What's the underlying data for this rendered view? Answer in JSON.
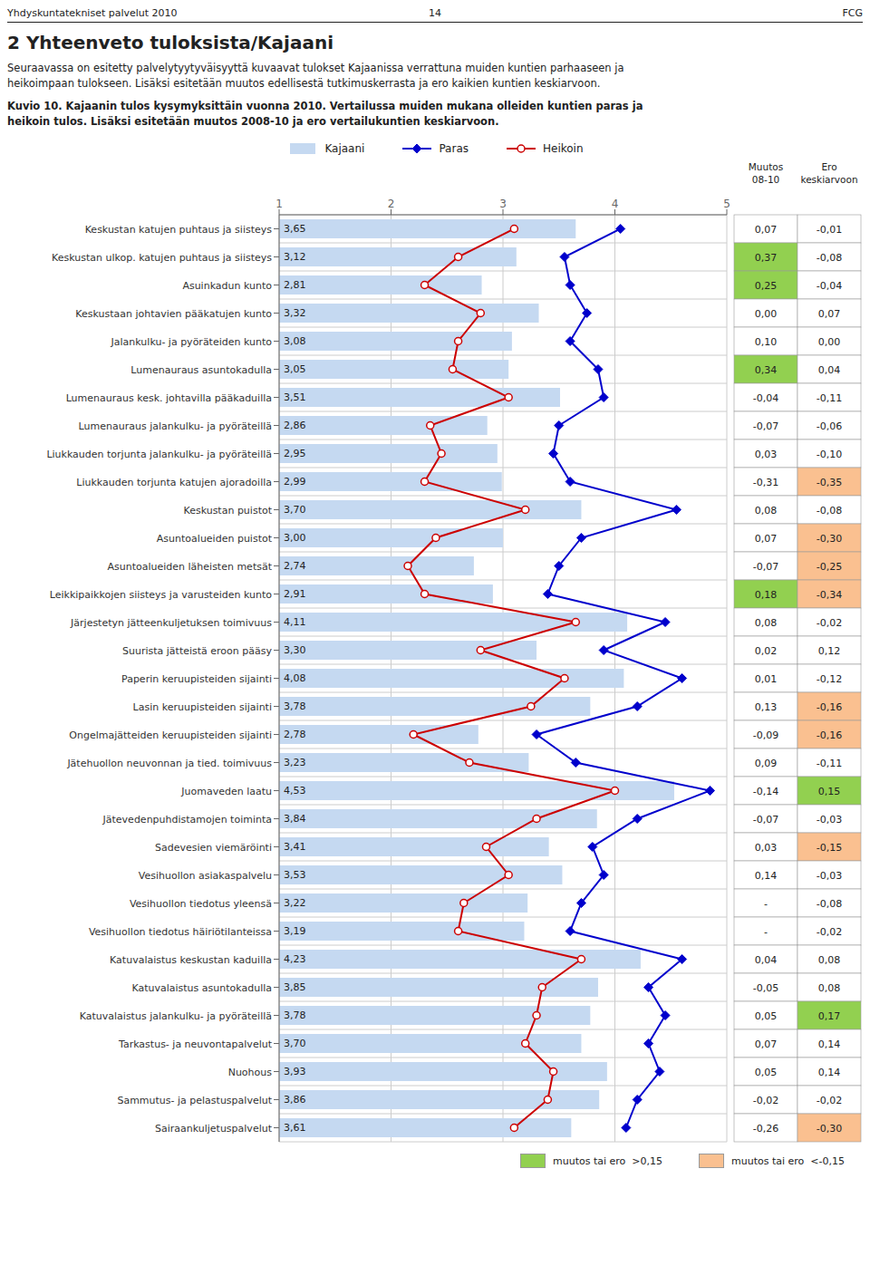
{
  "chart_data": {
    "type": "bar",
    "orientation": "horizontal",
    "header": [
      "Yhdyskuntatekniset palvelut 2010",
      "14",
      "FCG"
    ],
    "title": "2 Yhteenveto tuloksista/Kajaani",
    "intro": [
      "Seuraavassa on esitetty palvelytyytyväisyyttä kuvaavat tulokset Kajaanissa verrattuna muiden kuntien parhaaseen ja",
      "heikoimpaan tulokseen. Lisäksi esitetään muutos edellisestä tutkimuskerrasta ja ero kaikien kuntien keskiarvoon."
    ],
    "caption": [
      "Kuvio 10. Kajaanin tulos kysymyksittäin vuonna 2010. Vertailussa muiden mukana olleiden kuntien paras ja",
      "heikoin tulos. Lisäksi esitetään muutos 2008-10 ja ero vertailukuntien keskiarvoon."
    ],
    "categories": [
      "Keskustan katujen puhtaus ja siisteys",
      "Keskustan ulkop. katujen puhtaus ja siisteys",
      "Asuinkadun kunto",
      "Keskustaan johtavien pääkatujen kunto",
      "Jalankulku- ja pyöräteiden kunto",
      "Lumenauraus asuntokadulla",
      "Lumenauraus kesk. johtavilla pääkaduilla",
      "Lumenauraus jalankulku- ja pyöräteillä",
      "Liukkauden torjunta jalankulku- ja pyöräteillä",
      "Liukkauden torjunta katujen ajoradoilla",
      "Keskustan puistot",
      "Asuntoalueiden puistot",
      "Asuntoalueiden läheisten metsät",
      "Leikkipaikkojen siisteys ja varusteiden kunto",
      "Järjestetyn jätteenkuljetuksen toimivuus",
      "Suurista jätteistä eroon pääsy",
      "Paperin keruupisteiden sijainti",
      "Lasin keruupisteiden sijainti",
      "Ongelmajätteiden keruupisteiden sijainti",
      "Jätehuollon neuvonnan ja tied. toimivuus",
      "Juomaveden laatu",
      "Jätevedenpuhdistamojen toiminta",
      "Sadevesien viemäröinti",
      "Vesihuollon asiakaspalvelu",
      "Vesihuollon tiedotus yleensä",
      "Vesihuollon tiedotus häiriötilanteissa",
      "Katuvalaistus keskustan kaduilla",
      "Katuvalaistus asuntokadulla",
      "Katuvalaistus jalankulku- ja pyöräteillä",
      "Tarkastus- ja neuvontapalvelut",
      "Nuohous",
      "Sammutus- ja pelastuspalvelut",
      "Sairaankuljetuspalvelut"
    ],
    "series": [
      {
        "name": "Kajaani",
        "type": "bar",
        "color": "#c5d9f1",
        "values": [
          3.65,
          3.12,
          2.81,
          3.32,
          3.08,
          3.05,
          3.51,
          2.86,
          2.95,
          2.99,
          3.7,
          3.0,
          2.74,
          2.91,
          4.11,
          3.3,
          4.08,
          3.78,
          2.78,
          3.23,
          4.53,
          3.84,
          3.41,
          3.53,
          3.22,
          3.19,
          4.23,
          3.85,
          3.78,
          3.7,
          3.93,
          3.86,
          3.61
        ],
        "value_labels": [
          "3,65",
          "3,12",
          "2,81",
          "3,32",
          "3,08",
          "3,05",
          "3,51",
          "2,86",
          "2,95",
          "2,99",
          "3,70",
          "3,00",
          "2,74",
          "2,91",
          "4,11",
          "3,30",
          "4,08",
          "3,78",
          "2,78",
          "3,23",
          "4,53",
          "3,84",
          "3,41",
          "3,53",
          "3,22",
          "3,19",
          "4,23",
          "3,85",
          "3,78",
          "3,70",
          "3,93",
          "3,86",
          "3,61"
        ]
      },
      {
        "name": "Paras",
        "type": "line",
        "color": "#0000cc",
        "marker": "diamond",
        "values": [
          4.05,
          3.55,
          3.6,
          3.75,
          3.6,
          3.85,
          3.9,
          3.5,
          3.45,
          3.6,
          4.55,
          3.7,
          3.5,
          3.4,
          4.45,
          3.9,
          4.6,
          4.2,
          3.3,
          3.65,
          4.85,
          4.2,
          3.8,
          3.9,
          3.7,
          3.6,
          4.6,
          4.3,
          4.45,
          4.3,
          4.4,
          4.2,
          4.1
        ]
      },
      {
        "name": "Heikoin",
        "type": "line",
        "color": "#cc0000",
        "marker": "circle",
        "values": [
          3.1,
          2.6,
          2.3,
          2.8,
          2.6,
          2.55,
          3.05,
          2.35,
          2.45,
          2.3,
          3.2,
          2.4,
          2.15,
          2.3,
          3.65,
          2.8,
          3.55,
          3.25,
          2.2,
          2.7,
          4.0,
          3.3,
          2.85,
          3.05,
          2.65,
          2.6,
          3.7,
          3.35,
          3.3,
          3.2,
          3.45,
          3.4,
          3.1
        ]
      }
    ],
    "xlim": [
      1,
      5
    ],
    "xticks": [
      1,
      2,
      3,
      4,
      5
    ],
    "grid": true,
    "legend": "top",
    "data_labels": true,
    "table": {
      "columns": [
        {
          "header": [
            "Muutos",
            "08-10"
          ],
          "values": [
            0.07,
            0.37,
            0.25,
            0.0,
            0.1,
            0.34,
            -0.04,
            -0.07,
            0.03,
            -0.31,
            0.08,
            0.07,
            -0.07,
            0.18,
            0.08,
            0.02,
            0.01,
            0.13,
            -0.09,
            0.09,
            -0.14,
            -0.07,
            0.03,
            0.14,
            null,
            null,
            0.04,
            -0.05,
            0.05,
            0.07,
            0.05,
            -0.02,
            -0.26
          ],
          "value_labels": [
            "0,07",
            "0,37",
            "0,25",
            "0,00",
            "0,10",
            "0,34",
            "-0,04",
            "-0,07",
            "0,03",
            "-0,31",
            "0,08",
            "0,07",
            "-0,07",
            "0,18",
            "0,08",
            "0,02",
            "0,01",
            "0,13",
            "-0,09",
            "0,09",
            "-0,14",
            "-0,07",
            "0,03",
            "0,14",
            "-",
            "-",
            "0,04",
            "-0,05",
            "0,05",
            "0,07",
            "0,05",
            "-0,02",
            "-0,26"
          ],
          "colors": [
            "#ffffff",
            "#92d050",
            "#92d050",
            "#ffffff",
            "#ffffff",
            "#92d050",
            "#ffffff",
            "#ffffff",
            "#ffffff",
            "#ffffff",
            "#ffffff",
            "#ffffff",
            "#ffffff",
            "#92d050",
            "#ffffff",
            "#ffffff",
            "#ffffff",
            "#ffffff",
            "#ffffff",
            "#ffffff",
            "#ffffff",
            "#ffffff",
            "#ffffff",
            "#ffffff",
            "#ffffff",
            "#ffffff",
            "#ffffff",
            "#ffffff",
            "#ffffff",
            "#ffffff",
            "#ffffff",
            "#ffffff",
            "#ffffff"
          ]
        },
        {
          "header": [
            "Ero",
            "keskiarvoon"
          ],
          "values": [
            -0.01,
            -0.08,
            -0.04,
            0.07,
            0.0,
            0.04,
            -0.11,
            -0.06,
            -0.1,
            -0.35,
            -0.08,
            -0.3,
            -0.25,
            -0.34,
            -0.02,
            0.12,
            -0.12,
            -0.16,
            -0.16,
            -0.11,
            0.15,
            -0.03,
            -0.15,
            -0.03,
            -0.08,
            -0.02,
            0.08,
            0.08,
            0.17,
            0.14,
            0.14,
            -0.02,
            -0.3
          ],
          "value_labels": [
            "-0,01",
            "-0,08",
            "-0,04",
            "0,07",
            "0,00",
            "0,04",
            "-0,11",
            "-0,06",
            "-0,10",
            "-0,35",
            "-0,08",
            "-0,30",
            "-0,25",
            "-0,34",
            "-0,02",
            "0,12",
            "-0,12",
            "-0,16",
            "-0,16",
            "-0,11",
            "0,15",
            "-0,03",
            "-0,15",
            "-0,03",
            "-0,08",
            "-0,02",
            "0,08",
            "0,08",
            "0,17",
            "0,14",
            "0,14",
            "-0,02",
            "-0,30"
          ],
          "colors": [
            "#ffffff",
            "#ffffff",
            "#ffffff",
            "#ffffff",
            "#ffffff",
            "#ffffff",
            "#ffffff",
            "#ffffff",
            "#ffffff",
            "#fac090",
            "#ffffff",
            "#fac090",
            "#fac090",
            "#fac090",
            "#ffffff",
            "#ffffff",
            "#ffffff",
            "#fac090",
            "#fac090",
            "#ffffff",
            "#92d050",
            "#ffffff",
            "#fac090",
            "#ffffff",
            "#ffffff",
            "#ffffff",
            "#ffffff",
            "#ffffff",
            "#92d050",
            "#ffffff",
            "#ffffff",
            "#ffffff",
            "#fac090"
          ]
        }
      ],
      "key": [
        {
          "label": "muutos tai ero  >0,15",
          "color": "#92d050"
        },
        {
          "label": "muutos tai ero  <-0,15",
          "color": "#fac090"
        }
      ]
    }
  }
}
